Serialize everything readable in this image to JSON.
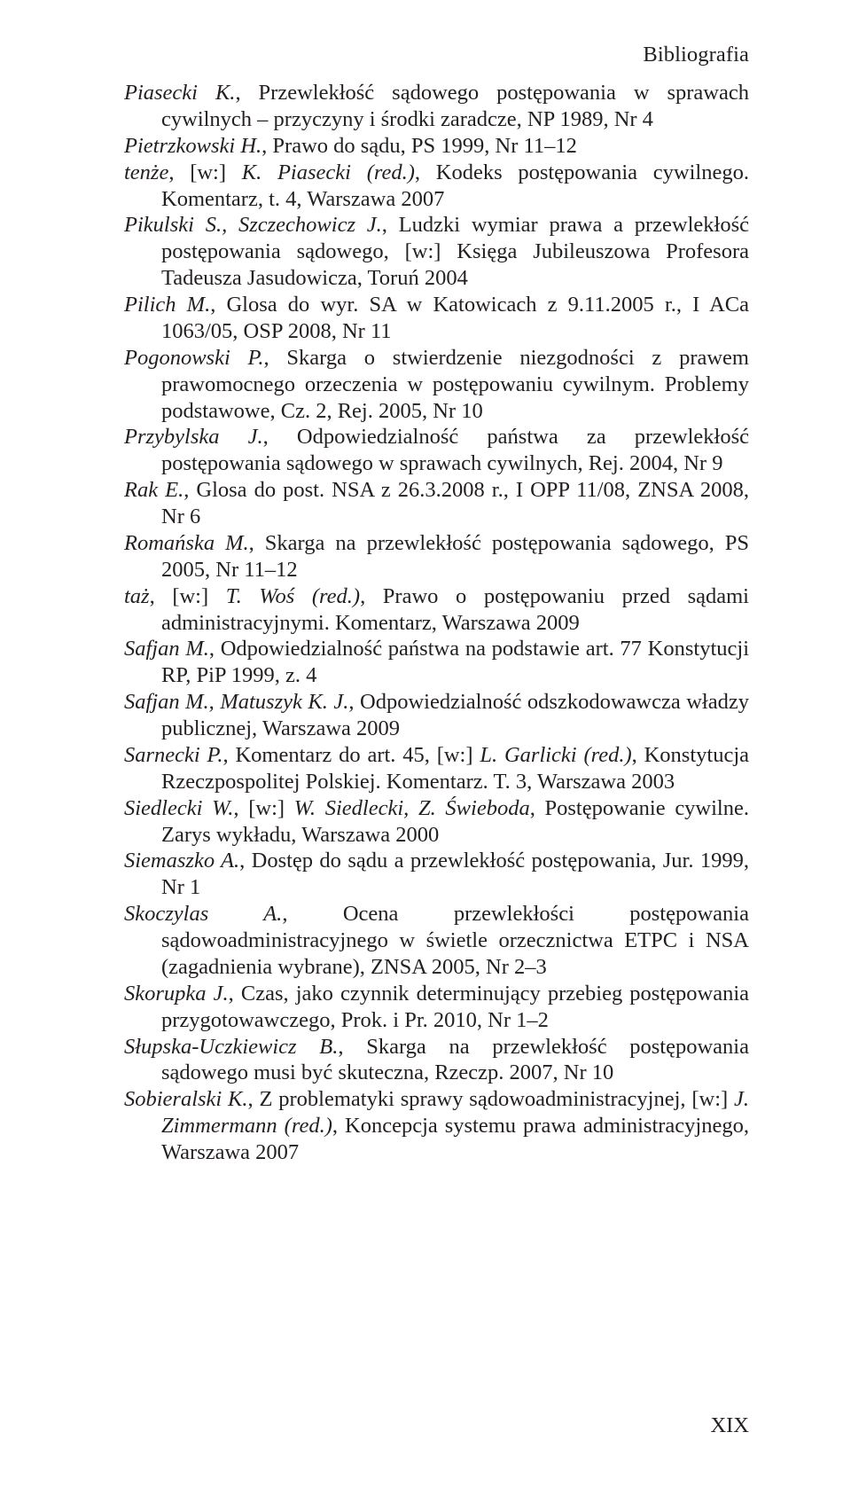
{
  "running_header": "Bibliografia",
  "page_number": "XIX",
  "entries": [
    [
      {
        "t": "Piasecki K.",
        "i": true
      },
      {
        "t": ", Przewlekłość sądowego postępowania w sprawach cywilnych – przyczyny i środki zaradcze, NP 1989, Nr 4",
        "i": false
      }
    ],
    [
      {
        "t": "Pietrzkowski H.",
        "i": true
      },
      {
        "t": ", Prawo do sądu, PS 1999, Nr 11–12",
        "i": false
      }
    ],
    [
      {
        "t": "tenże",
        "i": true
      },
      {
        "t": ", [w:] ",
        "i": false
      },
      {
        "t": "K. Piasecki (red.)",
        "i": true
      },
      {
        "t": ", Kodeks postępowania cywilnego. Komentarz, t. 4, Warszawa 2007",
        "i": false
      }
    ],
    [
      {
        "t": "Pikulski S., Szczechowicz J.",
        "i": true
      },
      {
        "t": ", Ludzki wymiar prawa a przewlekłość postępowania sądowego, [w:] Księga Jubileuszowa Profesora Tadeusza Jasudowicza, Toruń 2004",
        "i": false
      }
    ],
    [
      {
        "t": "Pilich M.",
        "i": true
      },
      {
        "t": ", Glosa do wyr. SA w Katowicach z 9.11.2005 r., I ACa 1063/05, OSP 2008, Nr 11",
        "i": false
      }
    ],
    [
      {
        "t": "Pogonowski P.",
        "i": true
      },
      {
        "t": ", Skarga o stwierdzenie niezgodności z prawem prawomocnego orzeczenia w postępowaniu cywilnym. Problemy podstawowe, Cz. 2, Rej. 2005, Nr 10",
        "i": false
      }
    ],
    [
      {
        "t": "Przybylska J.",
        "i": true
      },
      {
        "t": ", Odpowiedzialność państwa za przewlekłość postępowania sądowego w sprawach cywilnych, Rej. 2004, Nr 9",
        "i": false
      }
    ],
    [
      {
        "t": "Rak E.",
        "i": true
      },
      {
        "t": ", Glosa do post. NSA z 26.3.2008 r., I OPP 11/08, ZNSA 2008, Nr 6",
        "i": false
      }
    ],
    [
      {
        "t": "Romańska M.",
        "i": true
      },
      {
        "t": ", Skarga na przewlekłość postępowania sądowego, PS 2005, Nr 11–12",
        "i": false
      }
    ],
    [
      {
        "t": "taż",
        "i": true
      },
      {
        "t": ", [w:] ",
        "i": false
      },
      {
        "t": "T. Woś (red.)",
        "i": true
      },
      {
        "t": ", Prawo o postępowaniu przed sądami administracyjnymi. Komentarz, Warszawa 2009",
        "i": false
      }
    ],
    [
      {
        "t": "Safjan M.",
        "i": true
      },
      {
        "t": ", Odpowiedzialność państwa na podstawie art. 77 Konstytucji RP, PiP 1999, z. 4",
        "i": false
      }
    ],
    [
      {
        "t": "Safjan M., Matuszyk K. J.",
        "i": true
      },
      {
        "t": ", Odpowiedzialność odszkodowawcza władzy publicznej, Warszawa 2009",
        "i": false
      }
    ],
    [
      {
        "t": "Sarnecki P.",
        "i": true
      },
      {
        "t": ", Komentarz do art. 45, [w:] ",
        "i": false
      },
      {
        "t": "L. Garlicki (red.)",
        "i": true
      },
      {
        "t": ", Konstytucja Rzeczpospolitej Polskiej. Komentarz. T. 3, Warszawa 2003",
        "i": false
      }
    ],
    [
      {
        "t": "Siedlecki W.",
        "i": true
      },
      {
        "t": ", [w:] ",
        "i": false
      },
      {
        "t": "W. Siedlecki, Z. Świeboda",
        "i": true
      },
      {
        "t": ", Postępowanie cywilne. Zarys wykładu, Warszawa 2000",
        "i": false
      }
    ],
    [
      {
        "t": "Siemaszko A.",
        "i": true
      },
      {
        "t": ", Dostęp do sądu a przewlekłość postępowania, Jur. 1999, Nr 1",
        "i": false
      }
    ],
    [
      {
        "t": "Skoczylas A.",
        "i": true
      },
      {
        "t": ", Ocena przewlekłości postępowania sądowoadministracyjnego w świetle orzecznictwa ETPC i NSA (zagadnienia wybrane), ZNSA 2005, Nr 2–3",
        "i": false
      }
    ],
    [
      {
        "t": "Skorupka J.",
        "i": true
      },
      {
        "t": ", Czas, jako czynnik determinujący przebieg postępowania przygotowawczego, Prok. i Pr. 2010, Nr 1–2",
        "i": false
      }
    ],
    [
      {
        "t": "Słupska-Uczkiewicz B.",
        "i": true
      },
      {
        "t": ", Skarga na przewlekłość postępowania sądowego musi być skuteczna, Rzeczp. 2007, Nr 10",
        "i": false
      }
    ],
    [
      {
        "t": "Sobieralski K.",
        "i": true
      },
      {
        "t": ", Z problematyki sprawy sądowoadministracyjnej, [w:] ",
        "i": false
      },
      {
        "t": "J. Zimmermann (red.)",
        "i": true
      },
      {
        "t": ", Koncepcja systemu prawa administracyjnego, Warszawa 2007",
        "i": false
      }
    ]
  ]
}
